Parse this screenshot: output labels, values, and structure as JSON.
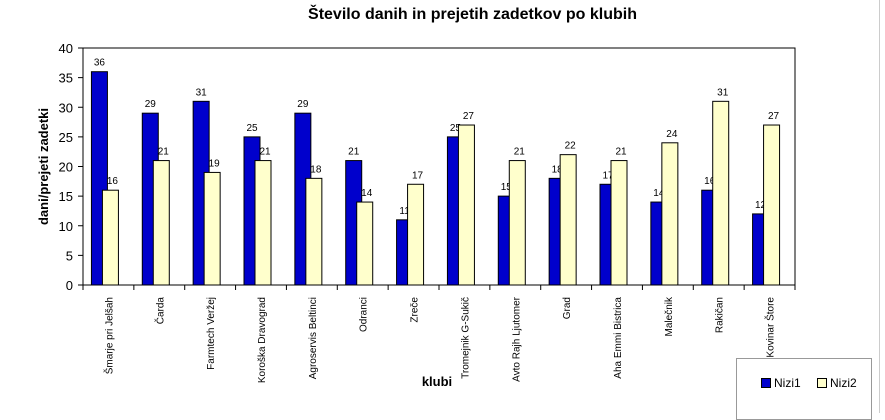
{
  "chart_data": {
    "type": "bar",
    "title": "Število danih in prejetih zadetkov po klubih",
    "xlabel": "klubi",
    "ylabel": "dani/prejeti zadetki",
    "ylim": [
      0,
      40
    ],
    "yticks": [
      0,
      5,
      10,
      15,
      20,
      25,
      30,
      35,
      40
    ],
    "categories": [
      "Šmarje pri Jelšah",
      "Čarda",
      "Farmtech Veržej",
      "Koroška Dravograd",
      "Agroservis Beltinci",
      "Odranci",
      "Zreče",
      "Tromejnik G-Sukič",
      "Avto Rajh Ljutomer",
      "Grad",
      "Aha Emmi Bistrica",
      "Malečnik",
      "Rakičan",
      "Kovinar Štore"
    ],
    "series": [
      {
        "name": "Nizi1",
        "color": "#0000cc",
        "values": [
          36,
          29,
          31,
          25,
          29,
          21,
          11,
          25,
          15,
          18,
          17,
          14,
          16,
          12
        ]
      },
      {
        "name": "Nizi2",
        "color": "#ffffcc",
        "values": [
          16,
          21,
          19,
          21,
          18,
          14,
          17,
          27,
          21,
          22,
          21,
          24,
          31,
          27
        ]
      }
    ],
    "legend": "bottom-right",
    "grid": false
  }
}
